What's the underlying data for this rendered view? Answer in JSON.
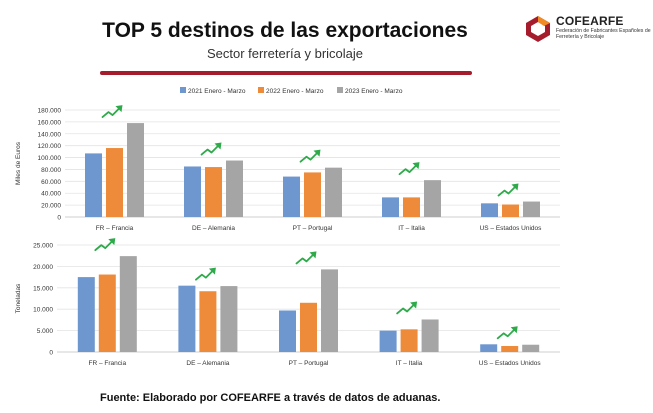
{
  "header": {
    "title": "TOP 5 destinos de las exportaciones",
    "subtitle": "Sector ferretería y bricolaje"
  },
  "logo": {
    "name": "COFEARFE",
    "tagline": "Federación de Fabricantes Españoles de Ferretería y Bricolaje"
  },
  "colors": {
    "s2021": "#6f97cf",
    "s2022": "#ee8b3a",
    "s2023": "#a5a5a5",
    "arrow": "#2eaa4a",
    "grid": "#e3e3e3",
    "axis": "#bfbfbf",
    "text": "#333333"
  },
  "chart_data": [
    {
      "type": "bar",
      "title": "",
      "xlabel": "",
      "ylabel": "Miles de Euros",
      "ylim": [
        0,
        180000
      ],
      "yticks": [
        "0",
        "20.000",
        "40.000",
        "60.000",
        "80.000",
        "100.000",
        "120.000",
        "140.000",
        "160.000",
        "180.000"
      ],
      "categories": [
        "FR – Francia",
        "DE – Alemania",
        "PT – Portugal",
        "IT – Italia",
        "US – Estados Unidos"
      ],
      "series": [
        {
          "name": "2021 Enero - Marzo",
          "values": [
            107000,
            85000,
            68000,
            33000,
            23000
          ]
        },
        {
          "name": "2022 Enero - Marzo",
          "values": [
            116000,
            84000,
            75000,
            33000,
            21000
          ]
        },
        {
          "name": "2023 Enero - Marzo",
          "values": [
            158000,
            95000,
            83000,
            62000,
            26000
          ]
        }
      ],
      "legend": "top",
      "grid": true
    },
    {
      "type": "bar",
      "title": "",
      "xlabel": "",
      "ylabel": "Toneladas",
      "ylim": [
        0,
        25000
      ],
      "yticks": [
        "0",
        "5.000",
        "10.000",
        "15.000",
        "20.000",
        "25.000"
      ],
      "categories": [
        "FR – Francia",
        "DE – Alemania",
        "PT – Portugal",
        "IT – Italia",
        "US – Estados Unidos"
      ],
      "series": [
        {
          "name": "2021 Enero - Marzo",
          "values": [
            17500,
            15500,
            9700,
            5000,
            1800
          ]
        },
        {
          "name": "2022 Enero - Marzo",
          "values": [
            18100,
            14200,
            11500,
            5300,
            1400
          ]
        },
        {
          "name": "2023 Enero - Marzo",
          "values": [
            22400,
            15400,
            19300,
            7600,
            1700
          ]
        }
      ],
      "legend": "none",
      "grid": true
    }
  ],
  "footer": {
    "source": "Fuente: Elaborado por COFEARFE a través de datos de aduanas."
  }
}
